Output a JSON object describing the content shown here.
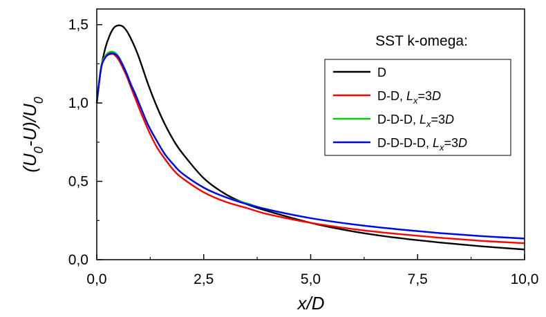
{
  "chart_data": {
    "type": "line",
    "xlabel": {
      "base": "x/D"
    },
    "ylabel": {
      "part1": "(U",
      "sub1": "0",
      "part2": "-U)/U",
      "sub2": "0"
    },
    "xlim": [
      0,
      10
    ],
    "ylim": [
      0,
      1.6
    ],
    "x_ticks": [
      0,
      2.5,
      5,
      7.5,
      10
    ],
    "x_tick_labels": [
      "0,0",
      "2,5",
      "5,0",
      "7,5",
      "10,0"
    ],
    "y_ticks": [
      0,
      0.5,
      1.0,
      1.5
    ],
    "y_tick_labels": [
      "0,0",
      "0,5",
      "1,0",
      "1,5"
    ],
    "grid": false,
    "legend": {
      "title": "SST k-omega:",
      "placement": "top-right"
    },
    "series": [
      {
        "name": "D",
        "label_parts": {
          "main": "D"
        },
        "color": "#000000",
        "x": [
          0,
          0.1,
          0.2,
          0.3,
          0.4,
          0.5,
          0.6,
          0.7,
          0.8,
          0.9,
          1.0,
          1.2,
          1.4,
          1.6,
          1.8,
          2.0,
          2.5,
          3.0,
          3.5,
          4.0,
          5.0,
          6.0,
          7.0,
          8.0,
          9.0,
          10.0
        ],
        "y": [
          1.0,
          1.22,
          1.35,
          1.43,
          1.48,
          1.495,
          1.49,
          1.46,
          1.41,
          1.35,
          1.28,
          1.12,
          0.98,
          0.86,
          0.76,
          0.68,
          0.52,
          0.42,
          0.355,
          0.31,
          0.235,
          0.18,
          0.14,
          0.11,
          0.085,
          0.065
        ]
      },
      {
        "name": "D-D, Lx=3D",
        "label_parts": {
          "main": "D-D, ",
          "L": "L",
          "sub": "x",
          "eq": "=3",
          "D": "D"
        },
        "color": "#ff0000",
        "x": [
          0,
          0.1,
          0.2,
          0.3,
          0.4,
          0.5,
          0.6,
          0.7,
          0.8,
          0.9,
          1.0,
          1.2,
          1.4,
          1.6,
          1.8,
          2.0,
          2.5,
          3.0,
          3.5,
          4.0,
          5.0,
          6.0,
          7.0,
          8.0,
          9.0,
          10.0
        ],
        "y": [
          1.0,
          1.22,
          1.29,
          1.31,
          1.31,
          1.28,
          1.23,
          1.17,
          1.1,
          1.03,
          0.96,
          0.83,
          0.72,
          0.64,
          0.57,
          0.52,
          0.43,
          0.37,
          0.33,
          0.29,
          0.235,
          0.195,
          0.165,
          0.14,
          0.12,
          0.105
        ]
      },
      {
        "name": "D-D-D, Lx=3D",
        "label_parts": {
          "main": "D-D-D, ",
          "L": "L",
          "sub": "x",
          "eq": "=3",
          "D": "D"
        },
        "color": "#00cc00",
        "x": [
          0,
          0.1,
          0.2,
          0.3,
          0.4,
          0.5,
          0.6,
          0.7,
          0.8,
          0.9,
          1.0,
          1.2,
          1.4,
          1.6,
          1.8,
          2.0,
          2.5,
          3.0,
          3.5,
          4.0,
          5.0,
          6.0,
          7.0,
          8.0,
          9.0,
          10.0
        ],
        "y": [
          1.0,
          1.23,
          1.3,
          1.325,
          1.325,
          1.3,
          1.25,
          1.19,
          1.12,
          1.06,
          0.99,
          0.86,
          0.76,
          0.67,
          0.605,
          0.55,
          0.46,
          0.4,
          0.36,
          0.32,
          0.265,
          0.225,
          0.195,
          0.17,
          0.15,
          0.135
        ]
      },
      {
        "name": "D-D-D-D, Lx=3D",
        "label_parts": {
          "main": "D-D-D-D, ",
          "L": "L",
          "sub": "x",
          "eq": "=3",
          "D": "D"
        },
        "color": "#0000ff",
        "x": [
          0,
          0.1,
          0.2,
          0.3,
          0.4,
          0.5,
          0.6,
          0.7,
          0.8,
          0.9,
          1.0,
          1.2,
          1.4,
          1.6,
          1.8,
          2.0,
          2.5,
          3.0,
          3.5,
          4.0,
          5.0,
          6.0,
          7.0,
          8.0,
          9.0,
          10.0
        ],
        "y": [
          1.0,
          1.22,
          1.29,
          1.315,
          1.315,
          1.295,
          1.245,
          1.185,
          1.115,
          1.055,
          0.99,
          0.86,
          0.76,
          0.67,
          0.605,
          0.55,
          0.46,
          0.4,
          0.355,
          0.32,
          0.265,
          0.225,
          0.195,
          0.17,
          0.15,
          0.135
        ]
      }
    ]
  }
}
